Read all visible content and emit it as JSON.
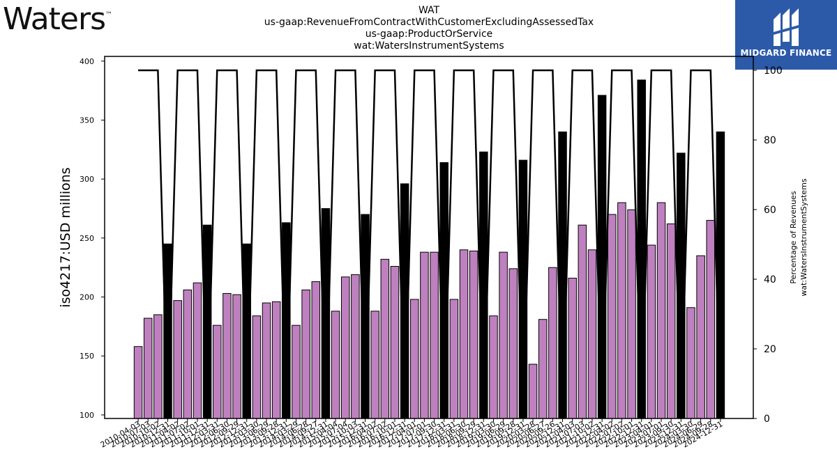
{
  "header": {
    "logo_text": "Waters",
    "logo_tm": "™",
    "title_lines": [
      "WAT",
      "us-gaap:RevenueFromContractWithCustomerExcludingAssessedTax",
      "us-gaap:ProductOrService",
      "wat:WatersInstrumentSystems"
    ],
    "brand": "MIDGARD FINANCE"
  },
  "colors": {
    "bar_fill": "#bf80bf",
    "bar_quarter4_fill": "#000000",
    "line": "#000000",
    "brand_bg": "#2c5aa8"
  },
  "chart_data": {
    "type": "bar",
    "ylabel": "iso4217:USD  millions",
    "y2label_lines": [
      "Percentage of Revenues",
      "wat:WatersInstrumentSystems"
    ],
    "ylim": [
      97,
      404
    ],
    "yticks": [
      100,
      150,
      200,
      250,
      300,
      350,
      400
    ],
    "y2lim": [
      0,
      104
    ],
    "y2ticks": [
      0,
      20,
      40,
      60,
      80,
      100
    ],
    "grid": false,
    "categories": [
      "2010-04-03",
      "2010-07-03",
      "2010-10-02",
      "2010-12-31",
      "2011-04-02",
      "2011-07-02",
      "2011-10-01",
      "2011-12-31",
      "2012-03-31",
      "2012-06-30",
      "2012-09-29",
      "2012-12-31",
      "2013-03-30",
      "2013-06-29",
      "2013-09-28",
      "2013-12-31",
      "2014-03-29",
      "2014-06-28",
      "2014-09-27",
      "2014-12-31",
      "2015-04-04",
      "2015-07-04",
      "2015-10-03",
      "2015-12-31",
      "2016-04-02",
      "2016-07-02",
      "2016-10-01",
      "2016-12-31",
      "2017-04-01",
      "2017-07-01",
      "2017-09-30",
      "2017-12-31",
      "2018-03-31",
      "2018-06-30",
      "2018-09-29",
      "2018-12-31",
      "2019-03-30",
      "2019-06-29",
      "2019-09-28",
      "2019-12-31",
      "2020-03-28",
      "2020-06-27",
      "2020-09-26",
      "2020-12-31",
      "2021-04-03",
      "2021-07-03",
      "2021-10-02",
      "2021-12-31",
      "2022-04-02",
      "2022-07-02",
      "2022-10-01",
      "2022-12-31",
      "2023-04-01",
      "2023-07-01",
      "2023-09-30",
      "2023-12-31",
      "2024-03-30",
      "2024-06-29",
      "2024-09-28",
      "2024-12-31"
    ],
    "series": [
      {
        "axis": "left",
        "kind": "bar",
        "values": [
          158,
          182,
          185,
          245,
          197,
          206,
          212,
          261,
          176,
          203,
          202,
          245,
          184,
          195,
          196,
          263,
          176,
          206,
          213,
          275,
          188,
          217,
          219,
          270,
          188,
          232,
          226,
          296,
          198,
          238,
          238,
          314,
          198,
          240,
          239,
          323,
          184,
          238,
          224,
          316,
          143,
          181,
          225,
          340,
          216,
          261,
          240,
          371,
          270,
          280,
          274,
          384,
          244,
          280,
          262,
          322,
          191,
          235,
          265,
          340
        ]
      },
      {
        "axis": "right",
        "kind": "line",
        "values": [
          100,
          100,
          100,
          0,
          100,
          100,
          100,
          0,
          100,
          100,
          100,
          0,
          100,
          100,
          100,
          0,
          100,
          100,
          100,
          0,
          100,
          100,
          100,
          0,
          100,
          100,
          100,
          0,
          100,
          100,
          100,
          0,
          100,
          100,
          100,
          0,
          100,
          100,
          100,
          0,
          100,
          100,
          100,
          0,
          100,
          100,
          100,
          0,
          100,
          100,
          100,
          0,
          100,
          100,
          100,
          0,
          100,
          100,
          100,
          0
        ]
      }
    ]
  }
}
